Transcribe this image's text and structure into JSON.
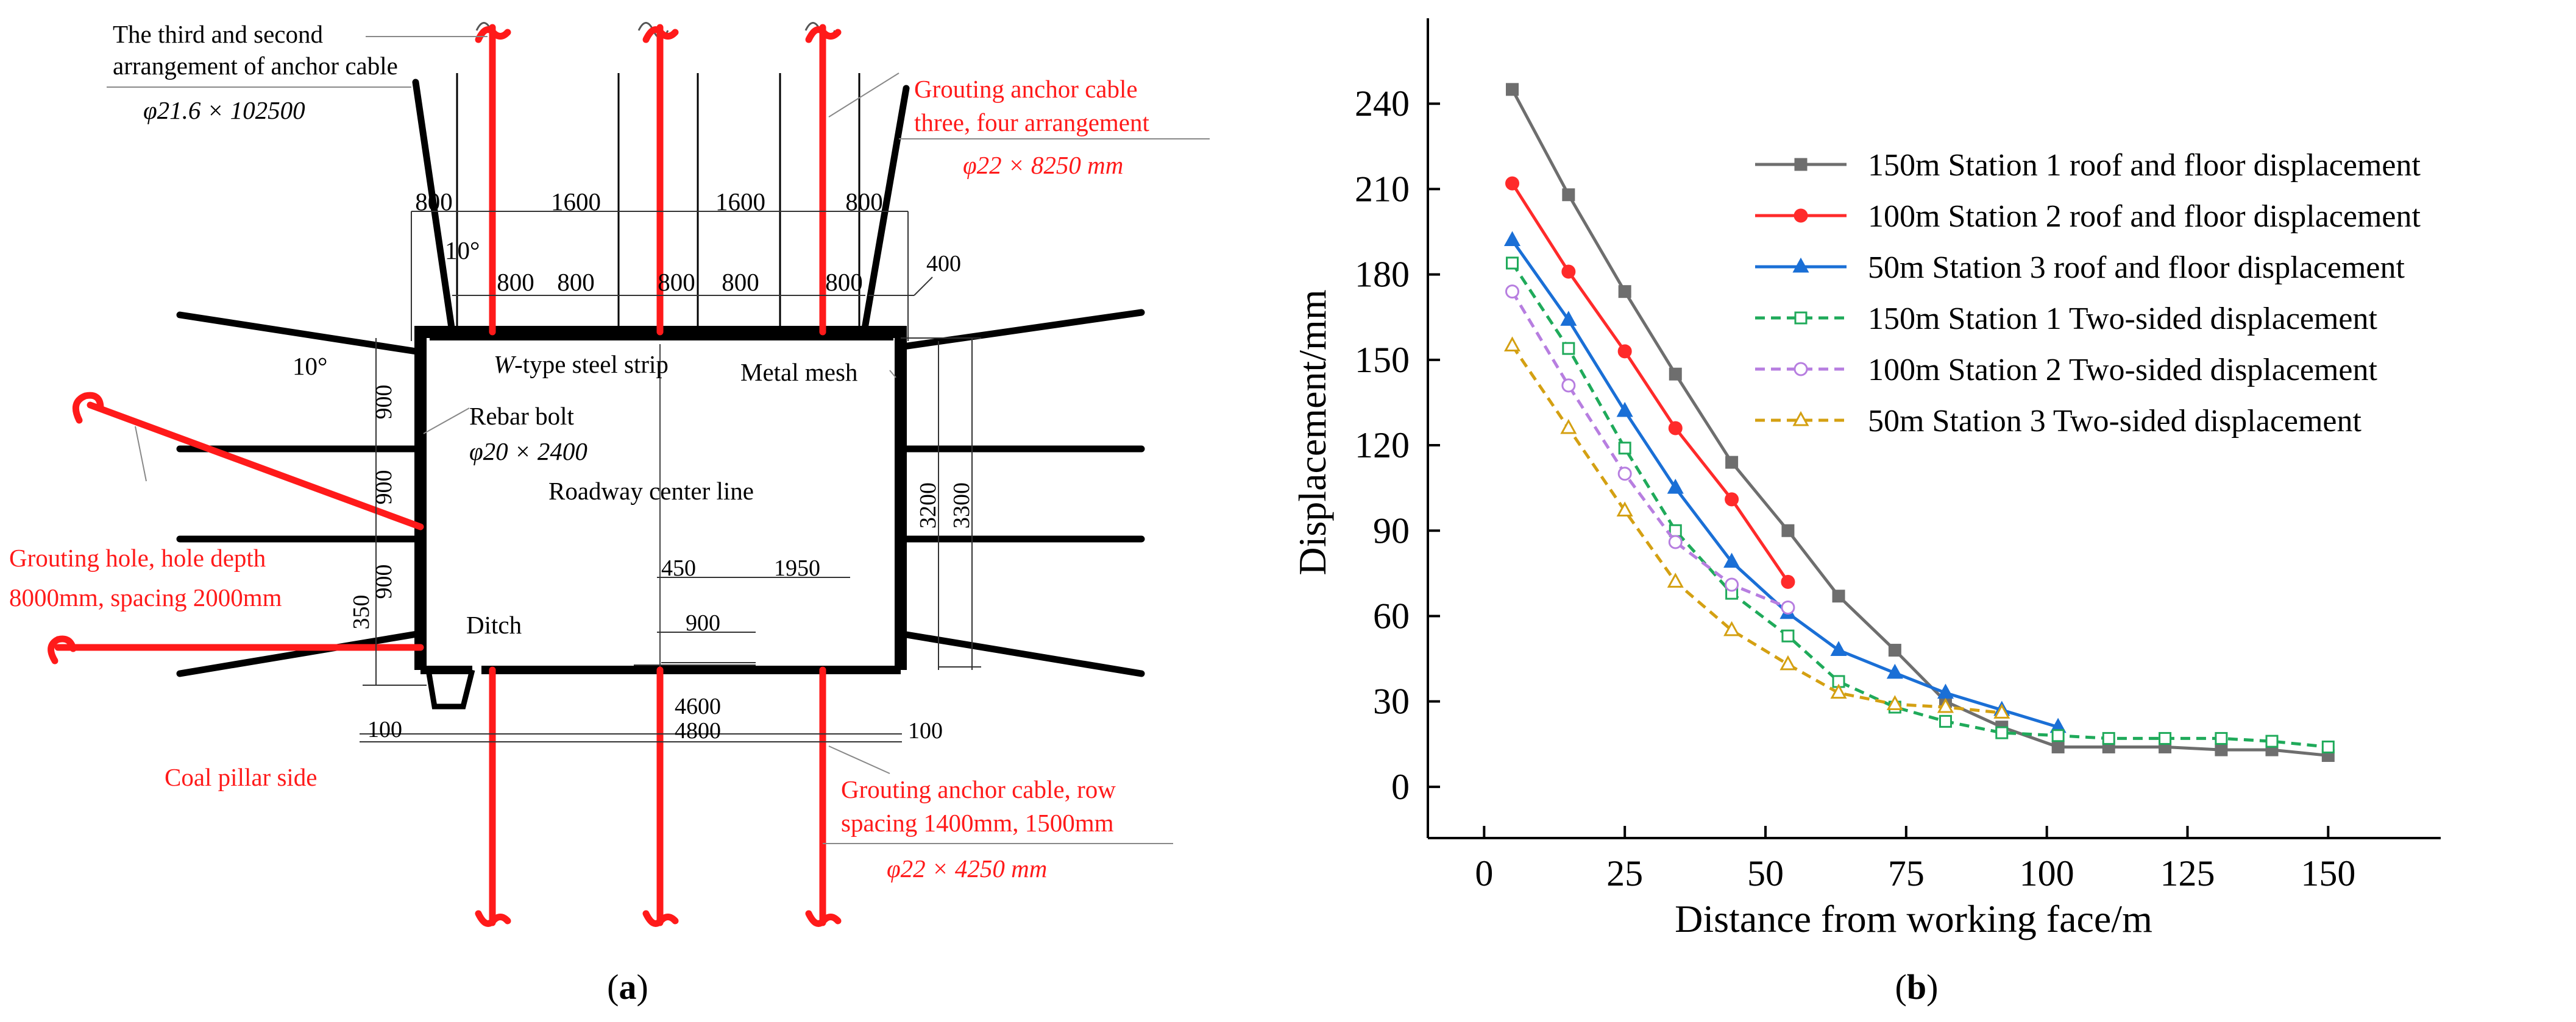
{
  "panel_a": {
    "label": "a",
    "top_left_annotation": [
      "The third and second",
      "arrangement of anchor cable"
    ],
    "top_left_spec": "φ21.6 × 102500",
    "top_right_annotation": [
      "Grouting anchor cable",
      "three, four arrangement"
    ],
    "top_right_spec": "φ22 × 8250 mm",
    "dim_top_row1": [
      "800",
      "1600",
      "1600",
      "800"
    ],
    "dim_top_row2": [
      "800",
      "800",
      "800",
      "800",
      "800"
    ],
    "dim_400": "400",
    "angle_top": "10°",
    "angle_left": "10°",
    "steel_strip_label_italic": "W",
    "steel_strip_label": "-type steel strip",
    "metal_mesh_label": "Metal mesh",
    "rebar_bolt_label": "Rebar bolt",
    "rebar_bolt_spec": "φ20 × 2400",
    "center_line_label": "Roadway center line",
    "grouting_hole_label": [
      "Grouting hole, hole depth",
      "8000mm, spacing 2000mm"
    ],
    "left_dims": [
      "900",
      "900",
      "900",
      "350"
    ],
    "right_dims": [
      "3200",
      "3300"
    ],
    "ditch_label": "Ditch",
    "dim_450": "450",
    "dim_1950": "1950",
    "dim_900_ditch": "900",
    "dim_4600": "4600",
    "dim_4800": "4800",
    "dim_100_left": "100",
    "dim_100_right": "100",
    "coal_pillar_label": "Coal pillar side",
    "bottom_right_annotation": [
      "Grouting anchor cable, row",
      "spacing 1400mm, 1500mm"
    ],
    "bottom_right_spec": "φ22 × 4250 mm"
  },
  "panel_b": {
    "label": "b"
  },
  "chart_data": {
    "type": "line",
    "xlabel": "Distance from working face/m",
    "ylabel": "Displacement/mm",
    "xlim": [
      -10,
      170
    ],
    "ylim": [
      -18,
      270
    ],
    "xticks": [
      0,
      25,
      50,
      75,
      100,
      125,
      150
    ],
    "yticks": [
      0,
      30,
      60,
      90,
      120,
      150,
      180,
      210,
      240
    ],
    "legend_position": "top-right",
    "series": [
      {
        "name": "150m  Station 1 roof and floor displacement",
        "color": "#6e6e6e",
        "marker": "square",
        "filled": true,
        "dashed": false,
        "x": [
          5,
          15,
          25,
          34,
          44,
          54,
          63,
          73,
          82,
          92,
          102,
          111,
          121,
          131,
          140,
          150
        ],
        "y": [
          245,
          208,
          174,
          145,
          114,
          90,
          67,
          48,
          30,
          21,
          14,
          14,
          14,
          13,
          13,
          11
        ]
      },
      {
        "name": "100m  Station 2 roof and floor displacement",
        "color": "#ff2a2a",
        "marker": "circle",
        "filled": true,
        "dashed": false,
        "x": [
          5,
          15,
          25,
          34,
          44,
          54
        ],
        "y": [
          212,
          181,
          153,
          126,
          101,
          72
        ]
      },
      {
        "name": "50m  Station 3 roof and floor displacement",
        "color": "#1a6fd6",
        "marker": "triangle",
        "filled": true,
        "dashed": false,
        "x": [
          5,
          15,
          25,
          34,
          44,
          54,
          63,
          73,
          82,
          92,
          102
        ],
        "y": [
          192,
          164,
          132,
          105,
          79,
          61,
          48,
          40,
          33,
          27,
          21
        ]
      },
      {
        "name": "150m  Station 1 Two-sided displacement",
        "color": "#1faa5a",
        "marker": "square",
        "filled": false,
        "dashed": true,
        "x": [
          5,
          15,
          25,
          34,
          44,
          54,
          63,
          73,
          82,
          92,
          102,
          111,
          121,
          131,
          140,
          150
        ],
        "y": [
          184,
          154,
          119,
          90,
          68,
          53,
          37,
          28,
          23,
          19,
          18,
          17,
          17,
          17,
          16,
          14
        ]
      },
      {
        "name": "100m  Station 2 Two-sided displacement",
        "color": "#b77ee0",
        "marker": "circle",
        "filled": false,
        "dashed": true,
        "x": [
          5,
          15,
          25,
          34,
          44,
          54
        ],
        "y": [
          174,
          141,
          110,
          86,
          71,
          63
        ]
      },
      {
        "name": "50m  Station 3 Two-sided displacement",
        "color": "#d4a012",
        "marker": "triangle",
        "filled": false,
        "dashed": true,
        "x": [
          5,
          15,
          25,
          34,
          44,
          54,
          63,
          73,
          82,
          92
        ],
        "y": [
          155,
          126,
          97,
          72,
          55,
          43,
          33,
          29,
          28,
          26
        ]
      }
    ]
  }
}
